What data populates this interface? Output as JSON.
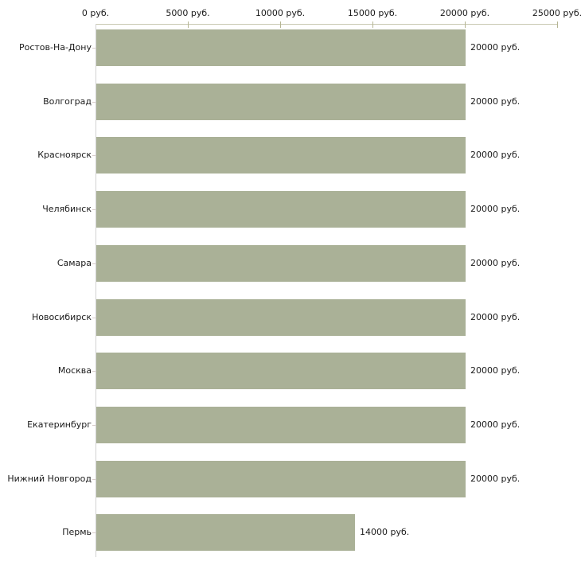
{
  "chart_data": {
    "type": "bar",
    "orientation": "horizontal",
    "title": "",
    "xlabel": "",
    "ylabel": "",
    "categories": [
      "Ростов-На-Дону",
      "Волгоград",
      "Красноярск",
      "Челябинск",
      "Самара",
      "Новосибирск",
      "Москва",
      "Екатеринбург",
      "Нижний Новгород",
      "Пермь"
    ],
    "values": [
      20000,
      20000,
      20000,
      20000,
      20000,
      20000,
      20000,
      20000,
      20000,
      14000
    ],
    "value_labels": [
      "20000 руб.",
      "20000 руб.",
      "20000 руб.",
      "20000 руб.",
      "20000 руб.",
      "20000 руб.",
      "20000 руб.",
      "20000 руб.",
      "20000 руб.",
      "14000 руб."
    ],
    "xlim": [
      0,
      25000
    ],
    "x_ticks": [
      {
        "value": 0,
        "label": "0 руб."
      },
      {
        "value": 5000,
        "label": "5000 руб."
      },
      {
        "value": 10000,
        "label": "10000 руб."
      },
      {
        "value": 15000,
        "label": "15000 руб."
      },
      {
        "value": 20000,
        "label": "20000 руб."
      },
      {
        "value": 25000,
        "label": "25000 руб."
      }
    ],
    "grid": false,
    "legend_position": "none",
    "colors": {
      "bar_fill": "#aab197",
      "axis_line": "#c9c9b2",
      "x_tick_mark": "#b5b593",
      "category_tick_mark": "#d8cccb",
      "text": "#1a1a1a",
      "background": "#ffffff"
    }
  }
}
